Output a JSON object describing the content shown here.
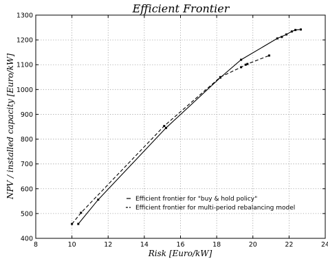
{
  "chart_data": {
    "type": "line",
    "title": "Efficient Frontier",
    "xlabel": "Risk [Euro/kW]",
    "ylabel": "NPV / installed capacity [Euro/kW]",
    "xlim": [
      8,
      24
    ],
    "ylim": [
      400,
      1300
    ],
    "xticks": [
      "8",
      "10",
      "12",
      "14",
      "16",
      "18",
      "20",
      "22",
      "24"
    ],
    "yticks": [
      "400",
      "500",
      "600",
      "700",
      "800",
      "900",
      "1000",
      "1100",
      "1200",
      "1300"
    ],
    "grid": true,
    "legend_position": "lower-right",
    "series": [
      {
        "name": "Efficient frontier for \"buy & hold policy\"",
        "line_style": "solid",
        "color": "#000000",
        "points": [
          {
            "x": 10.35,
            "y": 458
          },
          {
            "x": 11.45,
            "y": 556
          },
          {
            "x": 15.2,
            "y": 845
          },
          {
            "x": 18.2,
            "y": 1048
          },
          {
            "x": 19.35,
            "y": 1120
          },
          {
            "x": 21.35,
            "y": 1206
          },
          {
            "x": 21.85,
            "y": 1222
          },
          {
            "x": 22.15,
            "y": 1234
          },
          {
            "x": 22.35,
            "y": 1240
          },
          {
            "x": 22.65,
            "y": 1242
          }
        ]
      },
      {
        "name": "Efficient frontier for multi-period rebalancing model",
        "line_style": "dashed",
        "color": "#000000",
        "points": [
          {
            "x": 10.0,
            "y": 458
          },
          {
            "x": 10.5,
            "y": 503
          },
          {
            "x": 15.1,
            "y": 853
          },
          {
            "x": 18.2,
            "y": 1050
          },
          {
            "x": 19.35,
            "y": 1090
          },
          {
            "x": 19.6,
            "y": 1100
          },
          {
            "x": 19.7,
            "y": 1103
          },
          {
            "x": 20.9,
            "y": 1137
          }
        ]
      }
    ],
    "extra_markers": [
      {
        "x": 21.6,
        "y": 1212
      }
    ]
  }
}
